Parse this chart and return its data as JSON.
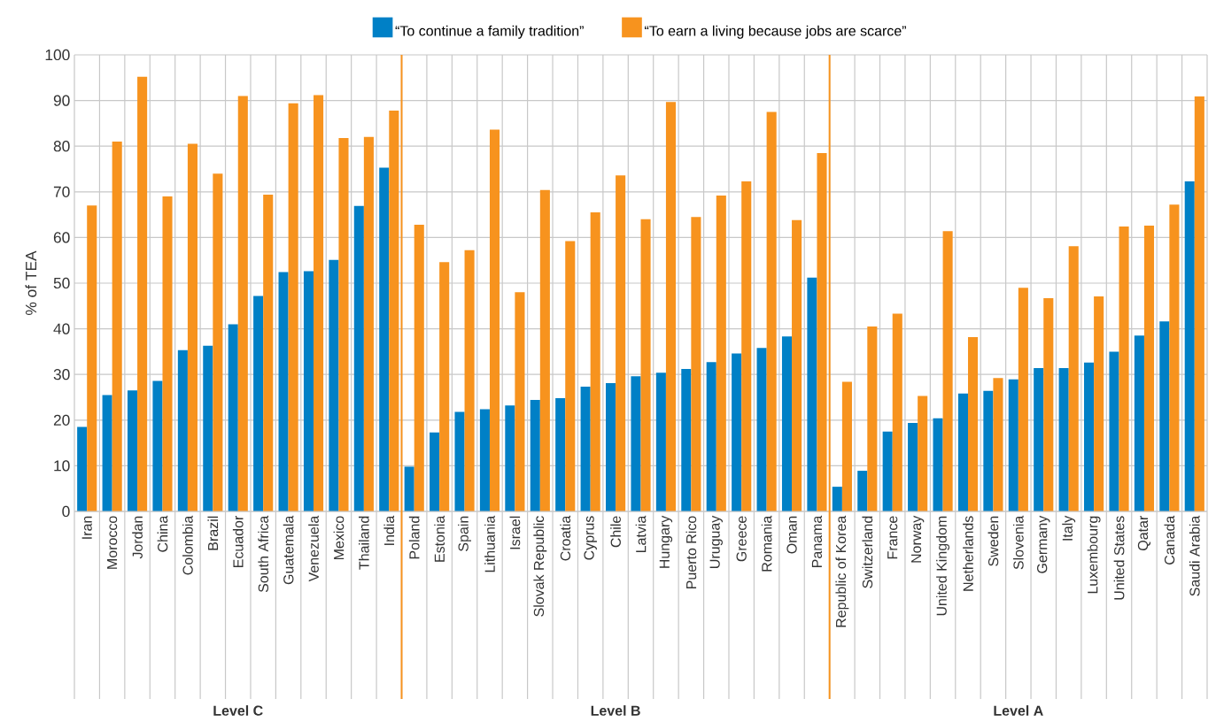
{
  "chart_data": {
    "type": "bar",
    "ylabel": "% of TEA",
    "categories": [
      "Iran",
      "Morocco",
      "Jordan",
      "China",
      "Colombia",
      "Brazil",
      "Ecuador",
      "South Africa",
      "Guatemala",
      "Venezuela",
      "Mexico",
      "Thailand",
      "India",
      "Poland",
      "Estonia",
      "Spain",
      "Lithuania",
      "Israel",
      "Slovak Republic",
      "Croatia",
      "Cyprus",
      "Chile",
      "Latvia",
      "Hungary",
      "Puerto Rico",
      "Uruguay",
      "Greece",
      "Romania",
      "Oman",
      "Panama",
      "Republic of Korea",
      "Switzerland",
      "France",
      "Norway",
      "United Kingdom",
      "Netherlands",
      "Sweden",
      "Slovenia",
      "Germany",
      "Italy",
      "Luxembourg",
      "United States",
      "Qatar",
      "Canada",
      "Saudi Arabia"
    ],
    "series": [
      {
        "name": "“To continue a family tradition”",
        "color": "#0080c6",
        "values": [
          18.5,
          25.5,
          26.5,
          28.6,
          35.3,
          36.3,
          41,
          47.2,
          52.4,
          52.6,
          55.1,
          66.9,
          75.3,
          9.8,
          17.3,
          21.8,
          22.4,
          23.2,
          24.4,
          24.8,
          27.3,
          28.1,
          29.6,
          30.4,
          31.2,
          32.7,
          34.6,
          35.8,
          38.3,
          51.2,
          5.4,
          8.9,
          17.5,
          19.4,
          20.4,
          25.8,
          26.4,
          28.9,
          31.4,
          31.4,
          32.6,
          35,
          38.5,
          41.6,
          72.3
        ]
      },
      {
        "name": "“To earn a living because jobs are scarce”",
        "color": "#f7931e",
        "values": [
          67,
          81,
          95.2,
          69,
          80.5,
          74,
          91,
          69.4,
          89.4,
          91.2,
          81.8,
          82,
          87.8,
          62.8,
          54.6,
          57.2,
          83.6,
          48,
          70.4,
          59.2,
          65.5,
          73.6,
          64,
          89.7,
          64.5,
          69.2,
          72.3,
          87.5,
          63.8,
          78.5,
          28.4,
          40.5,
          43.3,
          25.3,
          61.4,
          38.2,
          29.2,
          49,
          46.7,
          58.1,
          47.1,
          62.4,
          62.6,
          67.2,
          90.9
        ]
      }
    ],
    "annotations": [
      "Level C",
      "Level B",
      "Level A"
    ],
    "ylim": [
      0,
      100
    ],
    "yticks": [
      0,
      10,
      20,
      30,
      40,
      50,
      60,
      70,
      80,
      90,
      100
    ],
    "grid": true,
    "legend": "top"
  }
}
